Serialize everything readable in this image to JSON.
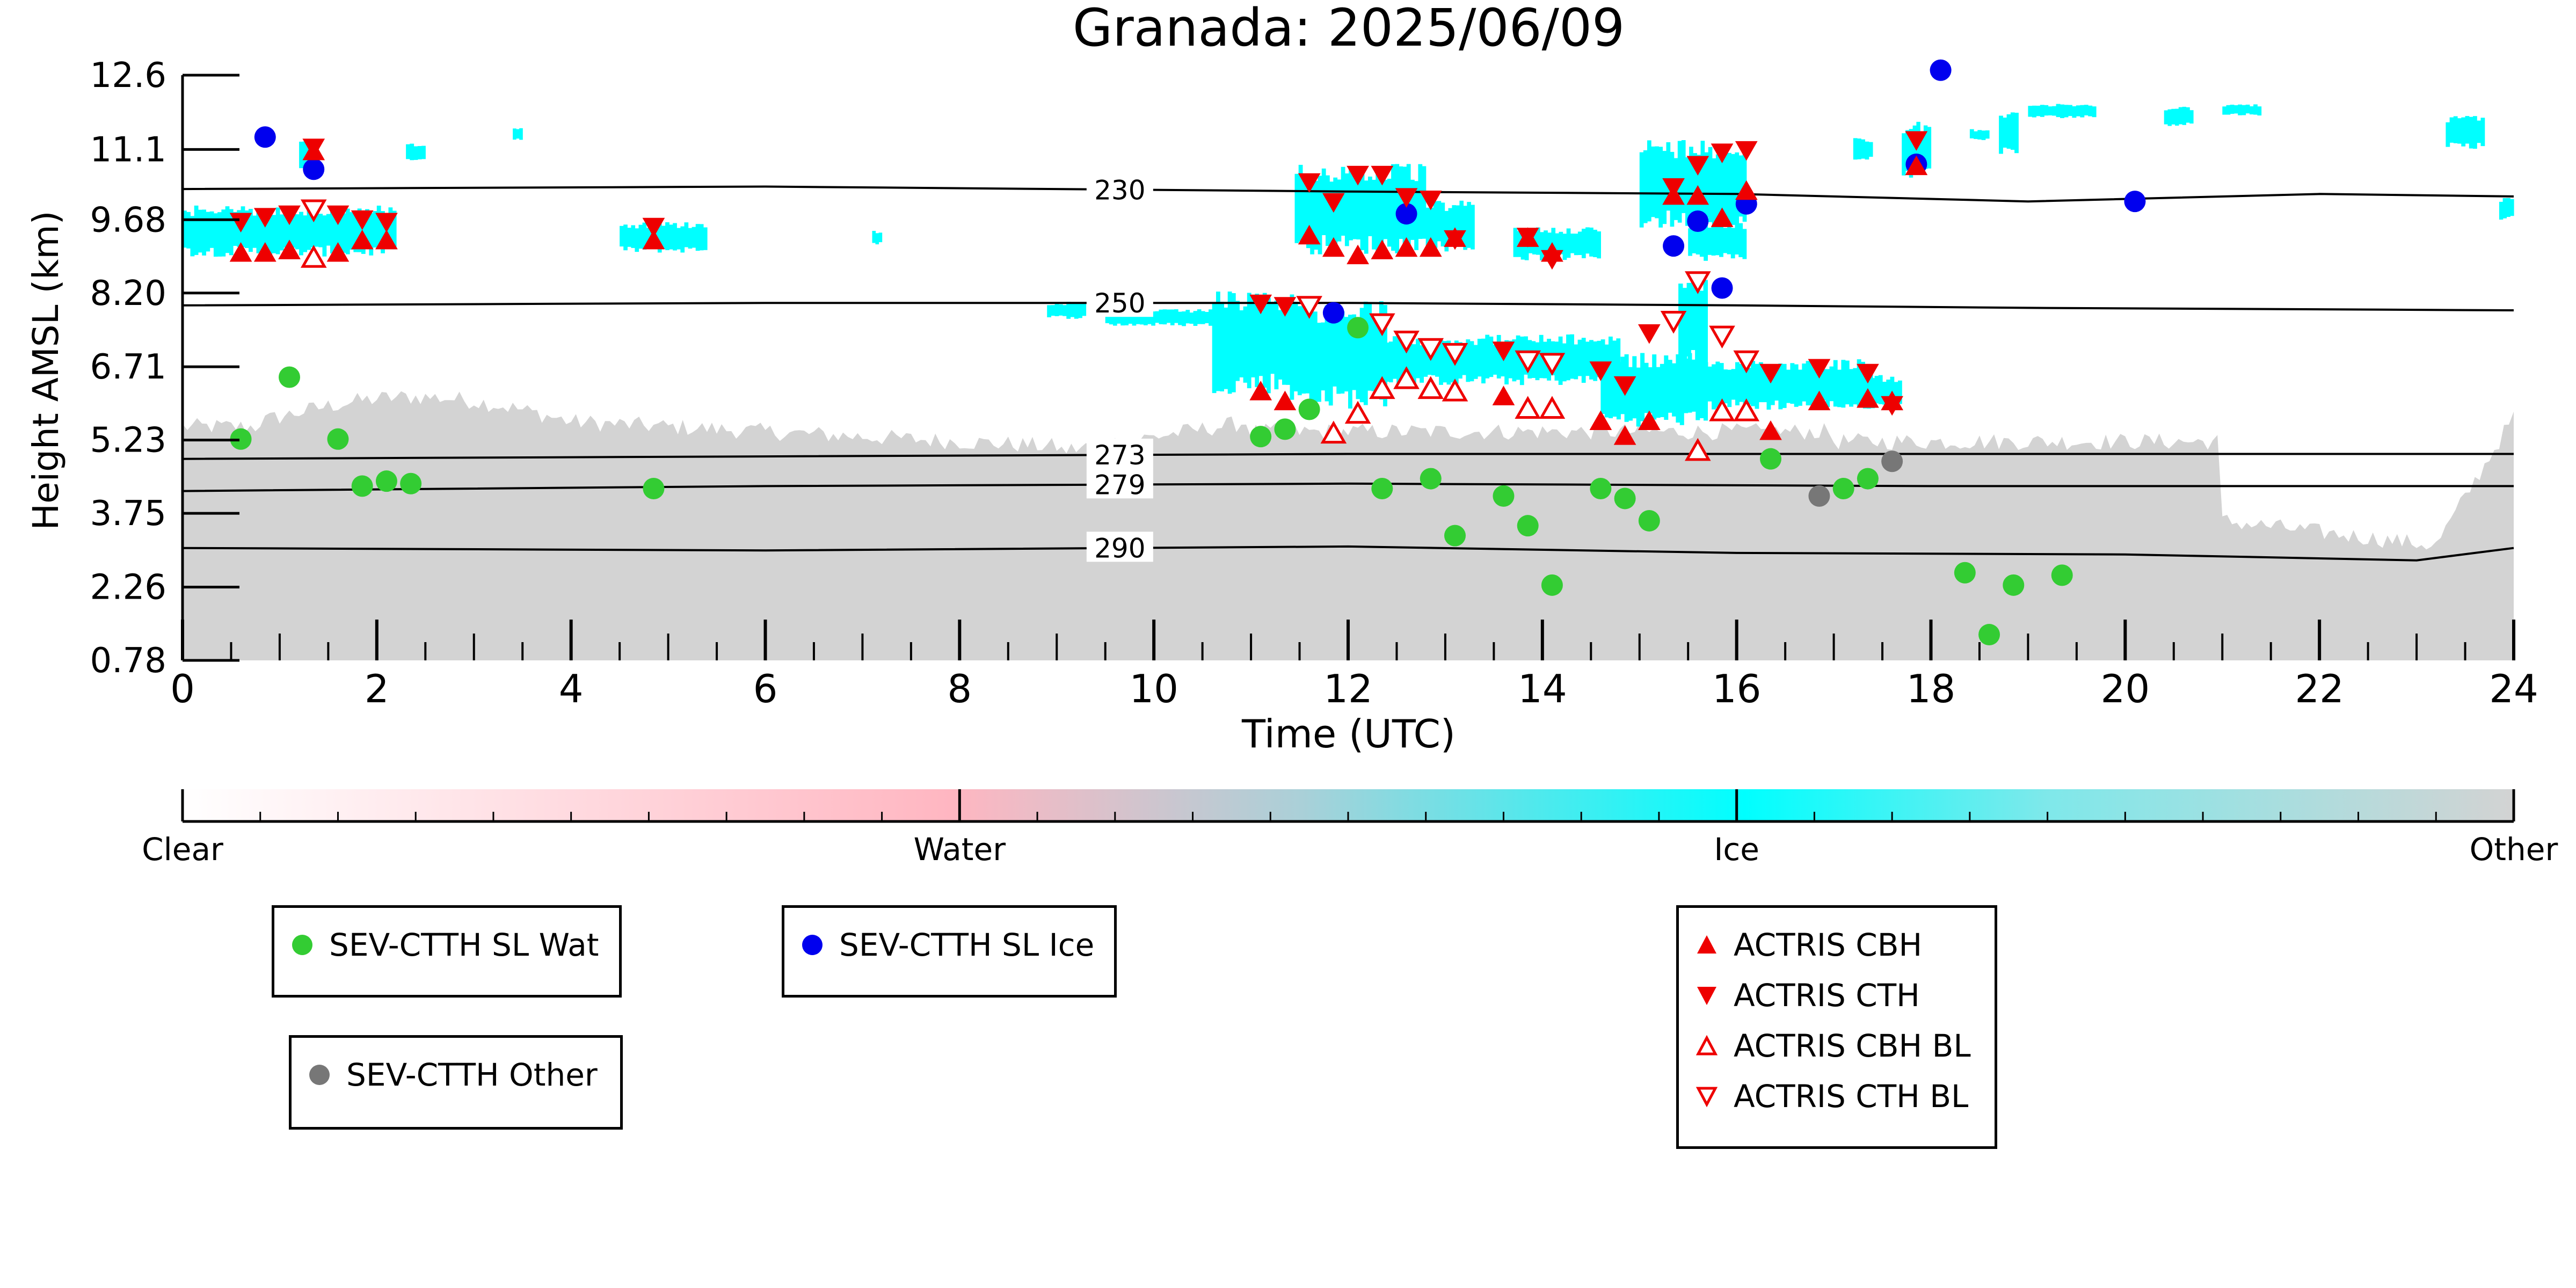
{
  "chart_data": {
    "type": "scatter",
    "title": "Granada: 2025/06/09",
    "xlabel": "Time (UTC)",
    "ylabel": "Height AMSL (km)",
    "xlim": [
      0,
      24
    ],
    "ylim": [
      0.78,
      12.6
    ],
    "x_ticks": [
      "0",
      "2",
      "4",
      "6",
      "8",
      "10",
      "12",
      "14",
      "16",
      "18",
      "20",
      "22",
      "24"
    ],
    "y_ticks": [
      0.78,
      2.26,
      3.75,
      5.23,
      6.71,
      8.2,
      9.68,
      11.1,
      12.6
    ],
    "y_tick_labels": [
      "0.78",
      "2.26",
      "3.75",
      "5.23",
      "6.71",
      "8.20",
      "9.68",
      "11.1",
      "12.6"
    ],
    "background_field": "cloud target classification",
    "colorbar": {
      "labels": [
        "Clear",
        "Water",
        "Ice",
        "Other"
      ],
      "colors": [
        "#ffffff",
        "#ffb6c1",
        "#00ffff",
        "#d3d3d3"
      ]
    },
    "isotherms": [
      {
        "label": "230",
        "points": [
          [
            0,
            10.3
          ],
          [
            6,
            10.35
          ],
          [
            12,
            10.25
          ],
          [
            16,
            10.2
          ],
          [
            19,
            10.05
          ],
          [
            22,
            10.2
          ],
          [
            24,
            10.15
          ]
        ]
      },
      {
        "label": "250",
        "points": [
          [
            0,
            7.95
          ],
          [
            6,
            8.0
          ],
          [
            12,
            8.0
          ],
          [
            16,
            7.95
          ],
          [
            19,
            7.9
          ],
          [
            24,
            7.85
          ]
        ]
      },
      {
        "label": "273",
        "points": [
          [
            0,
            4.85
          ],
          [
            6,
            4.9
          ],
          [
            12,
            4.95
          ],
          [
            24,
            4.95
          ]
        ]
      },
      {
        "label": "279",
        "points": [
          [
            0,
            4.2
          ],
          [
            6,
            4.3
          ],
          [
            12,
            4.35
          ],
          [
            18,
            4.3
          ],
          [
            24,
            4.3
          ]
        ]
      },
      {
        "label": "290",
        "points": [
          [
            0,
            3.05
          ],
          [
            6,
            3.0
          ],
          [
            12,
            3.08
          ],
          [
            16,
            2.95
          ],
          [
            20,
            2.92
          ],
          [
            23,
            2.8
          ],
          [
            24,
            3.05
          ]
        ]
      }
    ],
    "series": [
      {
        "name": "SEV-CTTH SL Wat",
        "marker": "circle",
        "color": "#33cc33",
        "x": [
          0.6,
          1.1,
          1.6,
          1.85,
          2.1,
          2.35,
          4.85,
          11.1,
          11.35,
          11.6,
          12.1,
          12.35,
          12.85,
          13.1,
          13.6,
          13.85,
          14.1,
          14.6,
          14.85,
          15.1,
          16.35,
          17.1,
          17.35,
          18.35,
          18.6,
          18.85,
          19.35
        ],
        "y": [
          5.25,
          6.5,
          5.25,
          4.3,
          4.4,
          4.35,
          4.25,
          5.3,
          5.45,
          5.85,
          7.5,
          4.25,
          4.45,
          3.3,
          4.1,
          3.5,
          2.3,
          4.25,
          4.05,
          3.6,
          4.85,
          4.25,
          4.45,
          2.55,
          1.3,
          2.3,
          2.5
        ]
      },
      {
        "name": "SEV-CTTH SL Ice",
        "marker": "circle",
        "color": "#0000ee",
        "x": [
          0.85,
          1.35,
          11.85,
          12.6,
          15.35,
          15.6,
          15.85,
          16.1,
          17.85,
          18.1,
          20.1
        ],
        "y": [
          11.35,
          10.7,
          7.8,
          9.8,
          9.15,
          9.65,
          8.3,
          10.0,
          10.8,
          12.7,
          10.05
        ]
      },
      {
        "name": "SEV-CTTH Other",
        "marker": "circle",
        "color": "#777777",
        "x": [
          16.85,
          17.6
        ],
        "y": [
          4.1,
          4.8
        ]
      },
      {
        "name": "ACTRIS CBH",
        "marker": "triangle-up",
        "color": "#ee0000",
        "x": [
          0.6,
          0.85,
          1.1,
          1.35,
          1.6,
          1.85,
          2.1,
          4.85,
          11.1,
          11.35,
          11.6,
          11.85,
          12.1,
          12.35,
          12.6,
          12.85,
          13.1,
          13.6,
          13.85,
          14.1,
          14.6,
          14.85,
          15.1,
          15.35,
          15.6,
          15.85,
          16.1,
          16.35,
          16.85,
          17.35,
          17.6,
          17.85
        ],
        "y": [
          9.0,
          9.0,
          9.05,
          11.05,
          9.0,
          9.25,
          9.25,
          9.25,
          6.2,
          6.0,
          9.35,
          9.1,
          8.95,
          9.05,
          9.1,
          9.1,
          9.3,
          6.1,
          9.3,
          9.0,
          5.6,
          5.3,
          5.6,
          10.15,
          10.15,
          9.7,
          10.25,
          5.4,
          6.0,
          6.05,
          6.0,
          10.75
        ]
      },
      {
        "name": "ACTRIS CTH",
        "marker": "triangle-down",
        "color": "#ee0000",
        "x": [
          0.6,
          0.85,
          1.1,
          1.35,
          1.6,
          1.85,
          2.1,
          4.85,
          11.1,
          11.35,
          11.6,
          11.85,
          12.1,
          12.35,
          12.6,
          12.85,
          13.1,
          13.6,
          13.85,
          14.1,
          14.6,
          14.85,
          15.1,
          15.35,
          15.6,
          15.85,
          16.1,
          16.35,
          16.85,
          17.35,
          17.6,
          17.85
        ],
        "y": [
          9.65,
          9.75,
          9.8,
          11.15,
          9.8,
          9.7,
          9.65,
          9.55,
          8.0,
          7.95,
          10.45,
          10.05,
          10.6,
          10.6,
          10.15,
          10.1,
          9.3,
          7.05,
          9.35,
          8.9,
          6.65,
          6.35,
          7.4,
          10.35,
          10.8,
          11.05,
          11.1,
          6.6,
          6.7,
          6.6,
          5.95,
          11.3
        ]
      },
      {
        "name": "ACTRIS CBH BL",
        "marker": "triangle-up-open",
        "color": "#ee0000",
        "x": [
          1.35,
          11.85,
          12.1,
          12.35,
          12.6,
          12.85,
          13.1,
          13.85,
          14.1,
          15.6,
          15.85,
          16.1
        ],
        "y": [
          8.9,
          5.35,
          5.75,
          6.25,
          6.45,
          6.25,
          6.2,
          5.85,
          5.85,
          5.0,
          5.8,
          5.8
        ]
      },
      {
        "name": "ACTRIS CTH BL",
        "marker": "triangle-down-open",
        "color": "#ee0000",
        "x": [
          1.35,
          11.6,
          12.35,
          12.6,
          12.85,
          13.1,
          13.85,
          14.1,
          15.35,
          15.6,
          15.85,
          16.1
        ],
        "y": [
          9.9,
          7.95,
          7.6,
          7.25,
          7.1,
          7.0,
          6.85,
          6.8,
          7.65,
          8.45,
          7.35,
          6.85
        ]
      }
    ]
  }
}
